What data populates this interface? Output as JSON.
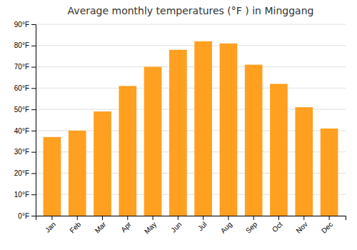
{
  "chart_data": {
    "type": "bar",
    "title": "Average monthly temperatures (°F ) in Minggang",
    "categories": [
      "Jan",
      "Feb",
      "Mar",
      "Apr",
      "May",
      "Jun",
      "Jul",
      "Aug",
      "Sep",
      "Oct",
      "Nov",
      "Dec"
    ],
    "values": [
      37,
      40,
      49,
      61,
      70,
      78,
      82,
      81,
      71,
      62,
      51,
      41
    ],
    "color": "#FFA020",
    "ylim": [
      0,
      90
    ],
    "yticks": [
      {
        "value": 0,
        "label": "0°F"
      },
      {
        "value": 10,
        "label": "10°F"
      },
      {
        "value": 20,
        "label": "20°F"
      },
      {
        "value": 30,
        "label": "30°F"
      },
      {
        "value": 40,
        "label": "40°F"
      },
      {
        "value": 50,
        "label": "50°F"
      },
      {
        "value": 60,
        "label": "60°F"
      },
      {
        "value": 70,
        "label": "70°F"
      },
      {
        "value": 80,
        "label": "80°F"
      },
      {
        "value": 90,
        "label": "90°F"
      }
    ],
    "grid": true
  }
}
